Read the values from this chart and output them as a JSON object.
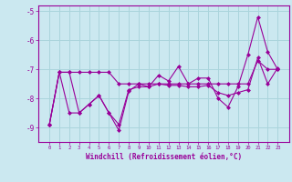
{
  "xlabel": "Windchill (Refroidissement éolien,°C)",
  "background_color": "#cbe8f0",
  "grid_color": "#aad4dc",
  "line_color": "#990099",
  "x_values": [
    0,
    1,
    2,
    3,
    4,
    5,
    6,
    7,
    8,
    9,
    10,
    11,
    12,
    13,
    14,
    15,
    16,
    17,
    18,
    19,
    20,
    21,
    22,
    23
  ],
  "series1": [
    -8.9,
    -7.1,
    -7.1,
    -8.5,
    -8.2,
    -7.9,
    -8.5,
    -8.9,
    -7.7,
    -7.6,
    -7.6,
    -7.2,
    -7.4,
    -6.9,
    -7.5,
    -7.3,
    -7.3,
    -8.0,
    -8.3,
    -7.6,
    -6.5,
    -5.2,
    -6.4,
    -7.0
  ],
  "series2": [
    -8.9,
    -7.1,
    -7.1,
    -7.1,
    -7.1,
    -7.1,
    -7.1,
    -7.5,
    -7.5,
    -7.5,
    -7.5,
    -7.5,
    -7.5,
    -7.5,
    -7.5,
    -7.5,
    -7.5,
    -7.5,
    -7.5,
    -7.5,
    -7.5,
    -6.7,
    -7.0,
    -7.0
  ],
  "series3": [
    -8.9,
    -7.1,
    -8.5,
    -8.5,
    -8.2,
    -7.9,
    -8.5,
    -9.1,
    -7.75,
    -7.5,
    -7.6,
    -7.5,
    -7.55,
    -7.55,
    -7.6,
    -7.6,
    -7.55,
    -7.8,
    -7.9,
    -7.8,
    -7.7,
    -6.6,
    -7.5,
    -6.95
  ],
  "ylim": [
    -9.5,
    -4.8
  ],
  "yticks": [
    -9,
    -8,
    -7,
    -6,
    -5
  ],
  "xticks": [
    0,
    1,
    2,
    3,
    4,
    5,
    6,
    7,
    8,
    9,
    10,
    11,
    12,
    13,
    14,
    15,
    16,
    17,
    18,
    19,
    20,
    21,
    22,
    23
  ]
}
